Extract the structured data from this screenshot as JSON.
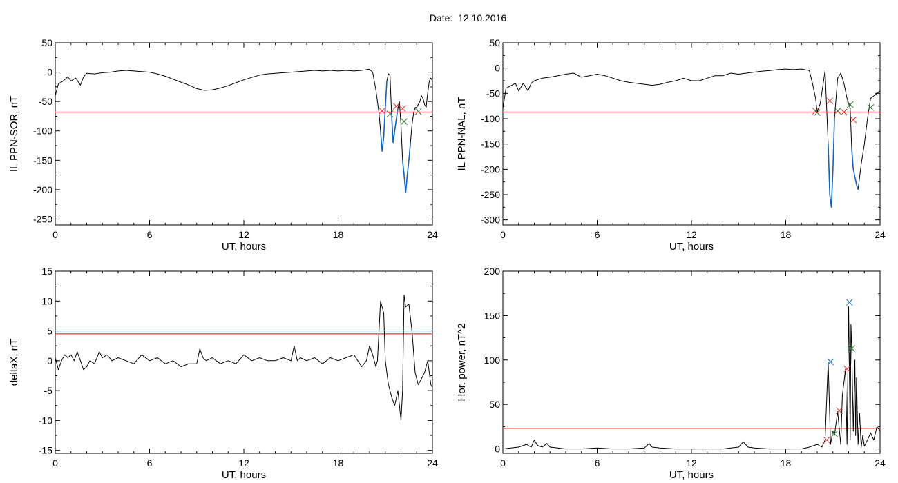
{
  "figure": {
    "title": "Date:  12.10.2016"
  },
  "chart_data": [
    {
      "type": "line",
      "xlabel": "UT, hours",
      "ylabel": "IL PPN-SOR, nT",
      "xlim": [
        0,
        24
      ],
      "ylim": [
        -260,
        50
      ],
      "xticks": [
        0,
        6,
        12,
        18,
        24
      ],
      "yticks": [
        50,
        0,
        -50,
        -100,
        -150,
        -200,
        -250
      ],
      "trace": {
        "color": "#000000",
        "x": [
          0,
          0.2,
          0.5,
          0.8,
          1.0,
          1.3,
          1.6,
          1.8,
          2.0,
          2.5,
          3.0,
          3.5,
          4.0,
          4.5,
          5.0,
          5.5,
          6.0,
          6.5,
          7.0,
          7.5,
          8.0,
          8.5,
          9.0,
          9.5,
          10.0,
          10.5,
          11.0,
          11.5,
          12.0,
          12.5,
          13.0,
          13.5,
          14.0,
          14.5,
          15.0,
          15.5,
          16.0,
          16.5,
          17.0,
          17.5,
          18.0,
          18.5,
          19.0,
          19.5,
          20.0,
          20.2,
          20.4,
          20.6,
          20.7,
          20.8,
          20.9,
          21.0,
          21.1,
          21.2,
          21.3,
          21.4,
          21.5,
          21.6,
          21.7,
          21.8,
          21.9,
          22.0,
          22.1,
          22.2,
          22.3,
          22.4,
          22.5,
          22.6,
          22.7,
          22.8,
          22.9,
          23.0,
          23.1,
          23.2,
          23.3,
          23.4,
          23.5,
          23.6,
          23.7,
          23.8,
          23.9,
          24.0
        ],
        "y": [
          -40,
          -20,
          -15,
          -8,
          -15,
          -10,
          -22,
          -8,
          -2,
          -3,
          -1,
          0,
          2,
          3,
          2,
          1,
          0,
          -3,
          -7,
          -12,
          -17,
          -22,
          -28,
          -31,
          -30,
          -27,
          -23,
          -18,
          -13,
          -9,
          -5,
          -3,
          -2,
          -1,
          0,
          1,
          2,
          3,
          2,
          3,
          2,
          3,
          2,
          3,
          5,
          0,
          -30,
          -70,
          -100,
          -135,
          -110,
          -60,
          -15,
          -3,
          -5,
          -70,
          -120,
          -100,
          -80,
          -62,
          -50,
          -90,
          -150,
          -175,
          -205,
          -175,
          -150,
          -120,
          -90,
          -70,
          -60,
          -60,
          -55,
          -50,
          -40,
          -45,
          -55,
          -60,
          -35,
          -15,
          -10,
          -15
        ]
      },
      "highlight": {
        "color": "#1565c0",
        "x": [
          20.7,
          20.8,
          20.9,
          21.0,
          21.1,
          21.4,
          21.5,
          21.6,
          21.7,
          21.8,
          22.1,
          22.2,
          22.3,
          22.4,
          22.5,
          22.6
        ],
        "y": [
          -100,
          -135,
          -110,
          -60,
          -15,
          -70,
          -120,
          -100,
          -80,
          -62,
          -150,
          -175,
          -205,
          -175,
          -150,
          -120
        ]
      },
      "threshold": [
        {
          "color": "#e53935",
          "y": -68
        }
      ],
      "markers": [
        {
          "color": "#e53935",
          "x": 20.8,
          "y": -66
        },
        {
          "color": "#e53935",
          "x": 21.7,
          "y": -58
        },
        {
          "color": "#e53935",
          "x": 22.1,
          "y": -62
        },
        {
          "color": "#2e7d32",
          "x": 21.3,
          "y": -71
        },
        {
          "color": "#2e7d32",
          "x": 22.2,
          "y": -84
        },
        {
          "color": "#2e7d32",
          "x": 23.1,
          "y": -67
        }
      ]
    },
    {
      "type": "line",
      "xlabel": "UT, hours",
      "ylabel": "IL PPN-NAL, nT",
      "xlim": [
        0,
        24
      ],
      "ylim": [
        -310,
        50
      ],
      "xticks": [
        0,
        6,
        12,
        18,
        24
      ],
      "yticks": [
        50,
        0,
        -50,
        -100,
        -150,
        -200,
        -250,
        -300
      ],
      "trace": {
        "color": "#000000",
        "x": [
          0,
          0.2,
          0.5,
          0.8,
          1.0,
          1.3,
          1.6,
          1.8,
          2.0,
          2.5,
          3.0,
          3.5,
          4.0,
          4.5,
          5.0,
          5.5,
          6.0,
          6.5,
          7.0,
          7.5,
          8.0,
          8.5,
          9.0,
          9.5,
          10.0,
          10.5,
          11.0,
          11.5,
          12.0,
          12.5,
          13.0,
          13.5,
          14.0,
          14.5,
          15.0,
          15.5,
          16.0,
          16.5,
          17.0,
          17.5,
          18.0,
          18.5,
          19.0,
          19.5,
          19.7,
          19.9,
          20.0,
          20.2,
          20.5,
          20.7,
          20.8,
          20.9,
          21.0,
          21.1,
          21.3,
          21.5,
          21.7,
          21.9,
          22.0,
          22.1,
          22.2,
          22.3,
          22.4,
          22.5,
          22.6,
          22.8,
          23.0,
          23.2,
          23.4,
          23.6,
          23.8,
          24.0
        ],
        "y": [
          -80,
          -40,
          -35,
          -30,
          -45,
          -30,
          -45,
          -30,
          -25,
          -20,
          -18,
          -15,
          -12,
          -10,
          -18,
          -15,
          -12,
          -15,
          -20,
          -25,
          -28,
          -30,
          -32,
          -34,
          -32,
          -28,
          -25,
          -20,
          -25,
          -25,
          -20,
          -15,
          -15,
          -10,
          -12,
          -10,
          -8,
          -6,
          -5,
          -3,
          -2,
          -3,
          -2,
          -5,
          -30,
          -60,
          -87,
          -70,
          -5,
          -150,
          -250,
          -275,
          -200,
          -100,
          -20,
          -10,
          -30,
          -60,
          -70,
          -80,
          -160,
          -200,
          -215,
          -230,
          -240,
          -190,
          -150,
          -100,
          -60,
          -55,
          -50,
          -45
        ]
      },
      "highlight": {
        "color": "#1565c0",
        "x": [
          20.7,
          20.8,
          20.9,
          21.0,
          21.1,
          22.2,
          22.3,
          22.4,
          22.5,
          22.6,
          22.8,
          23.0
        ],
        "y": [
          -150,
          -250,
          -275,
          -200,
          -100,
          -160,
          -200,
          -215,
          -230,
          -240,
          -190,
          -150
        ]
      },
      "threshold": [
        {
          "color": "#e53935",
          "y": -87
        }
      ],
      "markers": [
        {
          "color": "#e53935",
          "x": 19.9,
          "y": -85
        },
        {
          "color": "#e53935",
          "x": 20.8,
          "y": -65
        },
        {
          "color": "#e53935",
          "x": 21.7,
          "y": -87
        },
        {
          "color": "#e53935",
          "x": 22.3,
          "y": -102
        },
        {
          "color": "#2e7d32",
          "x": 20.0,
          "y": -88
        },
        {
          "color": "#2e7d32",
          "x": 21.3,
          "y": -85
        },
        {
          "color": "#2e7d32",
          "x": 22.1,
          "y": -72
        },
        {
          "color": "#2e7d32",
          "x": 23.4,
          "y": -78
        }
      ]
    },
    {
      "type": "line",
      "xlabel": "UT, hours",
      "ylabel": "deltaX, nT",
      "xlim": [
        0,
        24
      ],
      "ylim": [
        -15.5,
        15
      ],
      "xticks": [
        0,
        6,
        12,
        18,
        24
      ],
      "yticks": [
        15,
        10,
        5,
        0,
        -5,
        -10,
        -15
      ],
      "trace": {
        "color": "#000000",
        "x": [
          0,
          0.2,
          0.4,
          0.6,
          0.8,
          1.0,
          1.2,
          1.4,
          1.6,
          1.8,
          2.0,
          2.2,
          2.5,
          2.8,
          3.0,
          3.3,
          3.6,
          4.0,
          4.5,
          5.0,
          5.5,
          6.0,
          6.5,
          7.0,
          7.5,
          8.0,
          8.5,
          9.0,
          9.2,
          9.4,
          9.6,
          10.0,
          10.5,
          11.0,
          11.5,
          12.0,
          12.5,
          13.0,
          13.5,
          14.0,
          14.5,
          15.0,
          15.2,
          15.4,
          15.6,
          16.0,
          16.5,
          17.0,
          17.5,
          18.0,
          18.5,
          19.0,
          19.5,
          19.8,
          20.0,
          20.2,
          20.4,
          20.5,
          20.7,
          20.9,
          21.0,
          21.2,
          21.4,
          21.6,
          21.8,
          22.0,
          22.1,
          22.2,
          22.3,
          22.5,
          22.7,
          22.9,
          23.1,
          23.3,
          23.5,
          23.7,
          23.9,
          24.0
        ],
        "y": [
          0.5,
          -1.5,
          0,
          1,
          0.5,
          1,
          0,
          1.5,
          0,
          -1.5,
          -1,
          0,
          -0.5,
          1.5,
          0.5,
          1,
          0,
          0.5,
          0,
          -0.5,
          1,
          0,
          0.5,
          -0.5,
          0,
          -1,
          -0.5,
          -0.5,
          2,
          0.5,
          0,
          0.5,
          -0.5,
          0,
          -0.5,
          1,
          0,
          0.5,
          0,
          0,
          0.5,
          0,
          2.5,
          0,
          0.5,
          0,
          0.5,
          -0.5,
          0.5,
          0,
          0.5,
          1,
          -1,
          0,
          2.5,
          1,
          -1,
          0,
          10,
          8,
          0,
          -4,
          -6,
          -7.5,
          -5,
          -10,
          -5,
          11,
          9,
          9.5,
          5,
          -2,
          -4,
          -3,
          -2,
          0,
          -4,
          -4.5
        ]
      },
      "threshold": [
        {
          "color": "#1565c0",
          "y": 5.0
        },
        {
          "color": "#e53935",
          "y": 4.5
        }
      ]
    },
    {
      "type": "line",
      "xlabel": "UT, hours",
      "ylabel": "Hor. power, nT^2",
      "xlim": [
        0,
        24
      ],
      "ylim": [
        -5,
        200
      ],
      "xticks": [
        0,
        6,
        12,
        18,
        24
      ],
      "yticks": [
        200,
        150,
        100,
        50,
        0
      ],
      "trace": {
        "color": "#000000",
        "x": [
          0,
          0.5,
          1.0,
          1.5,
          1.8,
          2.0,
          2.2,
          2.5,
          2.8,
          3.0,
          3.5,
          4.0,
          5.0,
          6.0,
          7.0,
          8.0,
          9.0,
          9.3,
          9.5,
          10.0,
          11.0,
          12.0,
          13.0,
          14.0,
          14.5,
          15.0,
          15.3,
          15.6,
          16.0,
          17.0,
          18.0,
          19.0,
          19.5,
          20.0,
          20.3,
          20.5,
          20.7,
          20.85,
          21.0,
          21.1,
          21.3,
          21.5,
          21.6,
          21.8,
          21.9,
          22.0,
          22.1,
          22.15,
          22.2,
          22.3,
          22.4,
          22.45,
          22.5,
          22.6,
          22.7,
          22.8,
          22.9,
          23.0,
          23.2,
          23.4,
          23.6,
          23.8,
          24.0
        ],
        "y": [
          0,
          1,
          2,
          5,
          2,
          10,
          4,
          2,
          6,
          2,
          1,
          0,
          0,
          1,
          0,
          0,
          1,
          6,
          2,
          1,
          0,
          0,
          0,
          0,
          1,
          2,
          8,
          2,
          1,
          0,
          0,
          0,
          2,
          5,
          2,
          10,
          98,
          5,
          20,
          15,
          42,
          5,
          60,
          90,
          5,
          160,
          10,
          140,
          115,
          20,
          100,
          15,
          80,
          5,
          40,
          2,
          15,
          3,
          10,
          18,
          10,
          25,
          20
        ]
      },
      "threshold": [
        {
          "color": "#e53935",
          "y": 23
        }
      ],
      "markers": [
        {
          "color": "#1565c0",
          "x": 20.85,
          "y": 98
        },
        {
          "color": "#1565c0",
          "x": 22.05,
          "y": 165
        },
        {
          "color": "#e53935",
          "x": 20.6,
          "y": 10
        },
        {
          "color": "#e53935",
          "x": 21.4,
          "y": 43
        },
        {
          "color": "#e53935",
          "x": 21.9,
          "y": 90
        },
        {
          "color": "#2e7d32",
          "x": 21.1,
          "y": 17
        },
        {
          "color": "#2e7d32",
          "x": 22.2,
          "y": 113
        }
      ]
    }
  ]
}
